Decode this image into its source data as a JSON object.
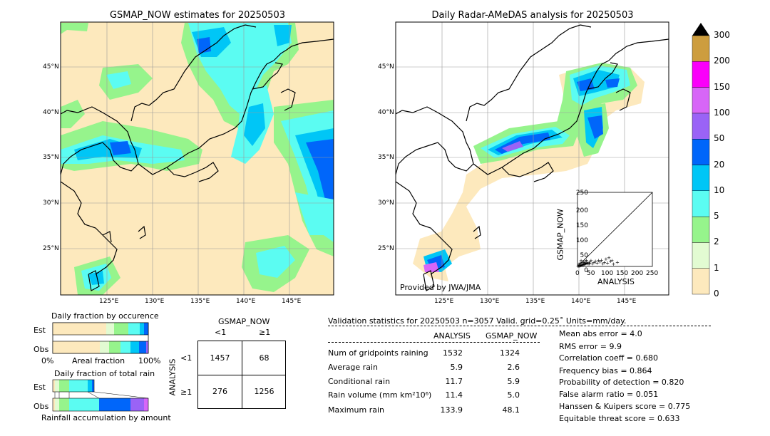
{
  "left_map": {
    "title": "GSMAP_NOW estimates for 20250503",
    "lat_labels": [
      "45°N",
      "40°N",
      "35°N",
      "30°N",
      "25°N"
    ],
    "lon_labels": [
      "125°E",
      "130°E",
      "135°E",
      "140°E",
      "145°E"
    ]
  },
  "right_map": {
    "title": "Daily Radar-AMeDAS analysis for 20250503",
    "credit": "Provided by JWA/JMA",
    "lat_labels": [
      "45°N",
      "40°N",
      "35°N",
      "30°N",
      "25°N"
    ],
    "lon_labels": [
      "125°E",
      "130°E",
      "135°E",
      "140°E",
      "145°E"
    ]
  },
  "colorbar": {
    "levels": [
      "0",
      "1",
      "2",
      "5",
      "10",
      "20",
      "50",
      "100",
      "150",
      "200",
      "300"
    ],
    "colors": [
      "#fde9bd",
      "#e2fbd2",
      "#96f48c",
      "#5bfcf2",
      "#00c6f6",
      "#0066fa",
      "#9a63f6",
      "#d766f7",
      "#fa00fa",
      "#cd9d3e"
    ]
  },
  "scatter": {
    "xlabel": "ANALYSIS",
    "ylabel": "GSMAP_NOW",
    "ticks": [
      "0",
      "50",
      "100",
      "150",
      "200",
      "250"
    ]
  },
  "fraction_occ": {
    "title": "Daily fraction by occurence",
    "rows": [
      "Est",
      "Obs"
    ],
    "x_left": "0%",
    "x_mid": "Areal fraction",
    "x_right": "100%"
  },
  "fraction_total": {
    "title": "Daily fraction of total rain",
    "rows": [
      "Est",
      "Obs"
    ],
    "footer": "Rainfall accumulation by amount"
  },
  "contingency": {
    "col_title": "GSMAP_NOW",
    "col_labels": [
      "<1",
      "≥1"
    ],
    "row_title": "ANALYSIS",
    "row_labels": [
      "<1",
      "≥1"
    ],
    "cells": [
      [
        "1457",
        "68"
      ],
      [
        "276",
        "1256"
      ]
    ]
  },
  "validation": {
    "header": "Validation statistics for 20250503  n=3057 Valid. grid=0.25˚ Units=mm/day.",
    "col_analysis": "ANALYSIS",
    "col_gsmap": "GSMAP_NOW",
    "rows": [
      {
        "label": "Num of gridpoints raining",
        "analysis": "1532",
        "gsmap": "1324"
      },
      {
        "label": "Average rain",
        "analysis": "5.9",
        "gsmap": "2.6"
      },
      {
        "label": "Conditional rain",
        "analysis": "11.7",
        "gsmap": "5.9"
      },
      {
        "label": "Rain volume (mm km²10⁶)",
        "analysis": "11.4",
        "gsmap": "5.0"
      },
      {
        "label": "Maximum rain",
        "analysis": "133.9",
        "gsmap": "48.1"
      }
    ],
    "scores": [
      "Mean abs error =    4.0",
      "RMS error =    9.9",
      "Correlation coeff =  0.680",
      "Frequency bias =  0.864",
      "Probability of detection =  0.820",
      "False alarm ratio =  0.051",
      "Hanssen & Kuipers score =  0.775",
      "Equitable threat score =  0.633"
    ]
  },
  "chart_data": {
    "type": "scatter",
    "title": "",
    "xlabel": "ANALYSIS",
    "ylabel": "GSMAP_NOW",
    "xlim": [
      0,
      250
    ],
    "ylim": [
      0,
      250
    ],
    "points": [
      [
        2,
        1
      ],
      [
        4,
        2
      ],
      [
        6,
        3
      ],
      [
        8,
        3
      ],
      [
        10,
        4
      ],
      [
        12,
        5
      ],
      [
        14,
        5
      ],
      [
        16,
        6
      ],
      [
        18,
        6
      ],
      [
        20,
        7
      ],
      [
        22,
        8
      ],
      [
        24,
        9
      ],
      [
        26,
        10
      ],
      [
        28,
        11
      ],
      [
        30,
        12
      ],
      [
        5,
        8
      ],
      [
        9,
        12
      ],
      [
        15,
        14
      ],
      [
        20,
        15
      ],
      [
        25,
        18
      ],
      [
        32,
        10
      ],
      [
        35,
        14
      ],
      [
        38,
        9
      ],
      [
        40,
        12
      ],
      [
        42,
        16
      ],
      [
        45,
        20
      ],
      [
        50,
        10
      ],
      [
        55,
        15
      ],
      [
        60,
        18
      ],
      [
        65,
        12
      ],
      [
        70,
        20
      ],
      [
        75,
        16
      ],
      [
        80,
        22
      ],
      [
        85,
        10
      ],
      [
        90,
        14
      ],
      [
        95,
        25
      ],
      [
        100,
        12
      ],
      [
        105,
        30
      ],
      [
        110,
        18
      ],
      [
        115,
        20
      ],
      [
        120,
        8
      ],
      [
        133,
        15
      ],
      [
        12,
        20
      ],
      [
        30,
        22
      ]
    ]
  }
}
